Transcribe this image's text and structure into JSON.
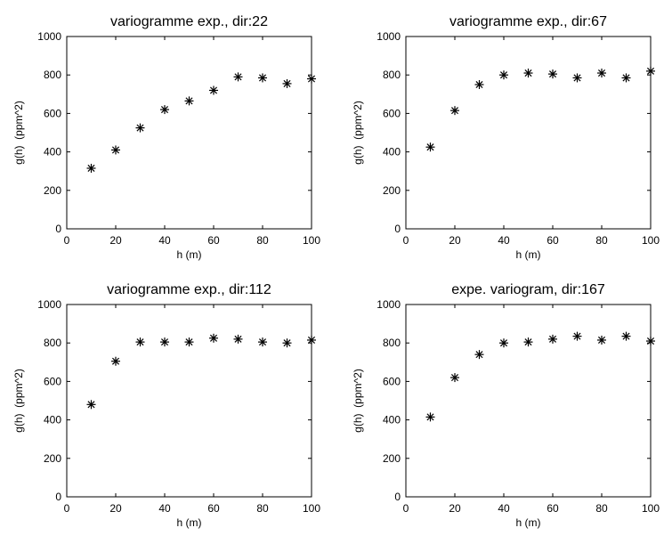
{
  "chart_data": [
    {
      "type": "scatter",
      "title": "variogramme exp., dir:22",
      "xlabel": "h (m)",
      "ylabel": "g(h)  (ppm^2)",
      "xlim": [
        0,
        100
      ],
      "ylim": [
        0,
        1000
      ],
      "xticks": [
        0,
        20,
        40,
        60,
        80,
        100
      ],
      "yticks": [
        0,
        200,
        400,
        600,
        800,
        1000
      ],
      "marker": "asterisk",
      "grid": false,
      "x": [
        10,
        20,
        30,
        40,
        50,
        60,
        70,
        80,
        90,
        100
      ],
      "y": [
        315,
        410,
        525,
        620,
        665,
        720,
        790,
        785,
        755,
        780
      ]
    },
    {
      "type": "scatter",
      "title": "variogramme exp., dir:67",
      "xlabel": "h (m)",
      "ylabel": "g(h)  (ppm^2)",
      "xlim": [
        0,
        100
      ],
      "ylim": [
        0,
        1000
      ],
      "xticks": [
        0,
        20,
        40,
        60,
        80,
        100
      ],
      "yticks": [
        0,
        200,
        400,
        600,
        800,
        1000
      ],
      "marker": "asterisk",
      "grid": false,
      "x": [
        10,
        20,
        30,
        40,
        50,
        60,
        70,
        80,
        90,
        100
      ],
      "y": [
        425,
        615,
        750,
        800,
        810,
        805,
        785,
        810,
        785,
        820
      ]
    },
    {
      "type": "scatter",
      "title": "variogramme exp., dir:112",
      "xlabel": "h (m)",
      "ylabel": "g(h)  (ppm^2)",
      "xlim": [
        0,
        100
      ],
      "ylim": [
        0,
        1000
      ],
      "xticks": [
        0,
        20,
        40,
        60,
        80,
        100
      ],
      "yticks": [
        0,
        200,
        400,
        600,
        800,
        1000
      ],
      "marker": "asterisk",
      "grid": false,
      "x": [
        10,
        20,
        30,
        40,
        50,
        60,
        70,
        80,
        90,
        100
      ],
      "y": [
        480,
        705,
        805,
        805,
        805,
        825,
        820,
        805,
        800,
        815
      ]
    },
    {
      "type": "scatter",
      "title": "expe. variogram, dir:167",
      "xlabel": "h (m)",
      "ylabel": "g(h)  (ppm^2)",
      "xlim": [
        0,
        100
      ],
      "ylim": [
        0,
        1000
      ],
      "xticks": [
        0,
        20,
        40,
        60,
        80,
        100
      ],
      "yticks": [
        0,
        200,
        400,
        600,
        800,
        1000
      ],
      "marker": "asterisk",
      "grid": false,
      "x": [
        10,
        20,
        30,
        40,
        50,
        60,
        70,
        80,
        90,
        100
      ],
      "y": [
        415,
        620,
        740,
        800,
        805,
        820,
        835,
        815,
        835,
        810
      ]
    }
  ],
  "colors": {
    "marker": "#000000",
    "axis": "#000000",
    "background": "#ffffff"
  }
}
